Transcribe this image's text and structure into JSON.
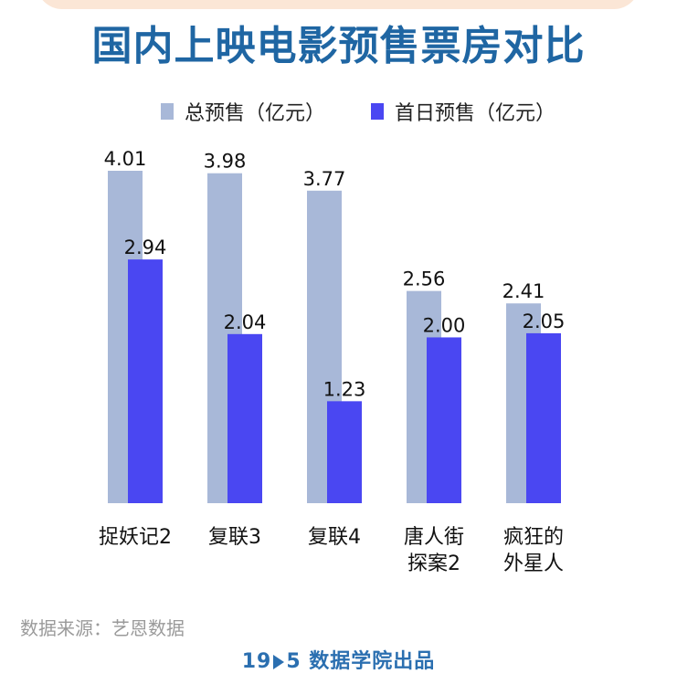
{
  "title": "国内上映电影预售票房对比",
  "legend": {
    "total": "总预售（亿元）",
    "first_day": "首日预售（亿元）"
  },
  "colors": {
    "total": "#a8b8d8",
    "first_day": "#4a47f2",
    "title": "#1f66a3"
  },
  "source": "数据来源：艺恩数据",
  "brand": {
    "prefix": "19",
    "suffix": "5",
    "text": "数据学院出品"
  },
  "chart_data": {
    "type": "bar",
    "title": "国内上映电影预售票房对比",
    "categories": [
      [
        "捉妖记2"
      ],
      [
        "复联3"
      ],
      [
        "复联4"
      ],
      [
        "唐人街",
        "探案2"
      ],
      [
        "疯狂的",
        "外星人"
      ]
    ],
    "series": [
      {
        "name": "总预售（亿元）",
        "values": [
          4.01,
          3.98,
          3.77,
          2.56,
          2.41
        ],
        "labels": [
          "4.01",
          "3.98",
          "3.77",
          "2.56",
          "2.41"
        ]
      },
      {
        "name": "首日预售（亿元）",
        "values": [
          2.94,
          2.04,
          1.23,
          2.0,
          2.05
        ],
        "labels": [
          "2.94",
          "2.04",
          "1.23",
          "2.00",
          "2.05"
        ]
      }
    ],
    "ylim": [
      0,
      4.01
    ],
    "grid": false,
    "legend": "top"
  }
}
